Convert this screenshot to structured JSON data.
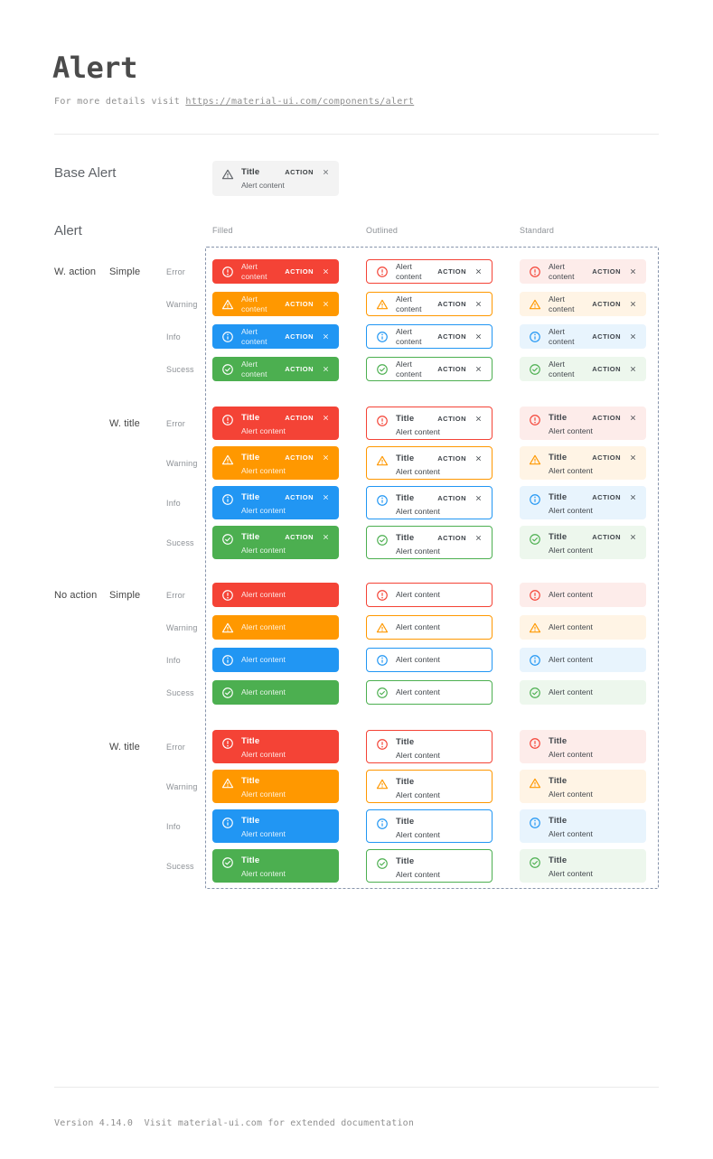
{
  "page": {
    "title": "Alert",
    "subtitle_prefix": "For more details visit ",
    "subtitle_link": "https://material-ui.com/components/alert",
    "footer": "Version 4.14.0  Visit material-ui.com for extended documentation"
  },
  "base_alert": {
    "label": "Base Alert",
    "title": "Title",
    "content": "Alert content",
    "action_label": "ACTION"
  },
  "alert_section": {
    "label": "Alert",
    "columns": [
      "Filled",
      "Outlined",
      "Standard"
    ],
    "groups": [
      {
        "label": "W. action",
        "variant": "Simple",
        "with_title": false,
        "with_action": true
      },
      {
        "label": "",
        "variant": "W. title",
        "with_title": true,
        "with_action": true
      },
      {
        "label": "No action",
        "variant": "Simple",
        "with_title": false,
        "with_action": false
      },
      {
        "label": "",
        "variant": "W. title",
        "with_title": true,
        "with_action": false
      }
    ],
    "severities": [
      {
        "label": "Error",
        "key": "error"
      },
      {
        "label": "Warning",
        "key": "warning"
      },
      {
        "label": "Info",
        "key": "info"
      },
      {
        "label": "Sucess",
        "key": "success"
      }
    ],
    "strings": {
      "title": "Title",
      "content": "Alert content",
      "action": "ACTION"
    }
  },
  "colors": {
    "error": {
      "main": "#f44336",
      "standard_bg": "#fdecea"
    },
    "warning": {
      "main": "#ff9800",
      "standard_bg": "#fff4e5"
    },
    "info": {
      "main": "#2196f3",
      "standard_bg": "#e8f4fd"
    },
    "success": {
      "main": "#4caf50",
      "standard_bg": "#edf7ed"
    },
    "filled_text": "#ffffff",
    "neutral_text": "#3f444a",
    "muted_label": "#8d9196",
    "dark_label": "#454545",
    "section_label": "#5f6368",
    "dashed_border": "#8794ab",
    "divider": "#eaeaea",
    "base_alert_bg": "#f3f3f3",
    "base_alert_fg": "#5f6368"
  },
  "icons": {
    "error": "error-outline-icon",
    "warning": "warning-triangle-icon",
    "info": "info-outline-icon",
    "success": "check-circle-icon",
    "close": "close-icon"
  }
}
